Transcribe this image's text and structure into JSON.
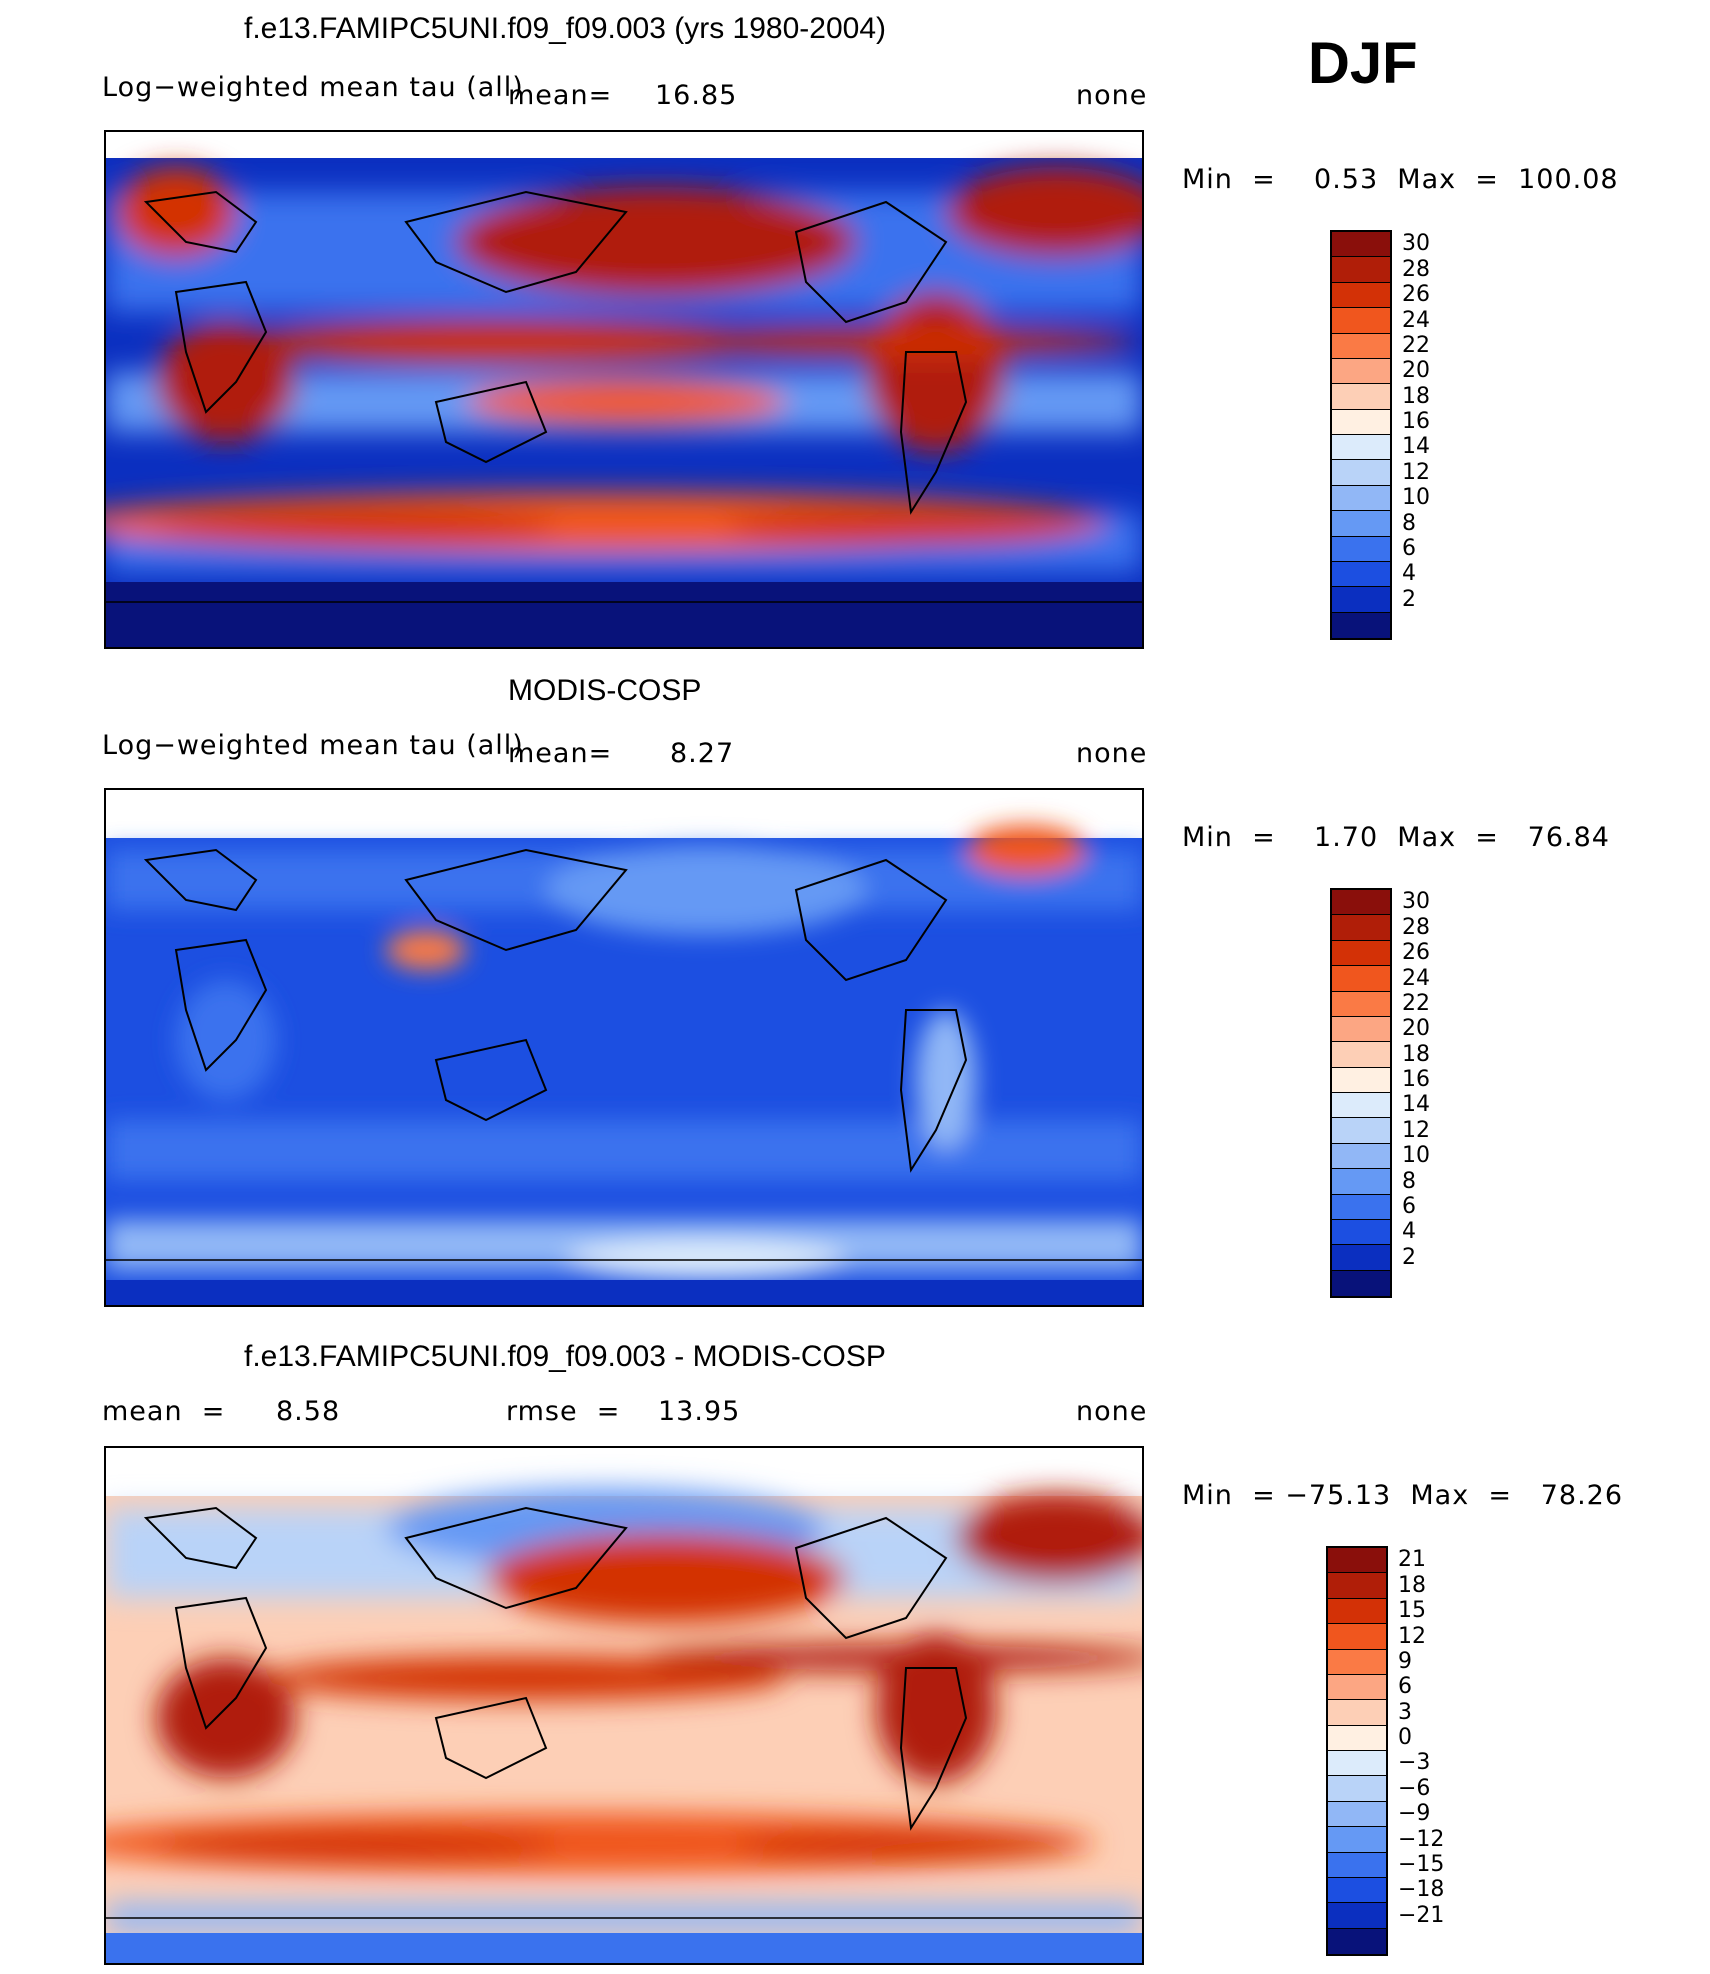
{
  "season": "DJF",
  "panels": [
    {
      "title": "f.e13.FAMIPC5UNI.f09_f09.003 (yrs 1980-2004)",
      "variable": "Log−weighted mean tau (all)",
      "mean_label": "mean=",
      "mean_value": "16.85",
      "units": "none",
      "minmax": "Min  =    0.53  Max  =  100.08",
      "cbar_labels": [
        "30",
        "28",
        "26",
        "24",
        "22",
        "20",
        "18",
        "16",
        "14",
        "12",
        "10",
        "8",
        "6",
        "4",
        "2"
      ],
      "cbar_colors": [
        "#8a0f0b",
        "#b01e08",
        "#d33106",
        "#f0561e",
        "#fa7a45",
        "#fca683",
        "#fdcfb6",
        "#fff0e2",
        "#dcebfb",
        "#b9d3f8",
        "#91b7f6",
        "#6599f4",
        "#3a72ee",
        "#1c4fe1",
        "#0b2fc0",
        "#08127a"
      ]
    },
    {
      "title": "MODIS-COSP",
      "variable": "Log−weighted mean tau (all)",
      "mean_label": "mean=",
      "mean_value": "8.27",
      "units": "none",
      "minmax": "Min  =    1.70  Max  =   76.84",
      "cbar_labels": [
        "30",
        "28",
        "26",
        "24",
        "22",
        "20",
        "18",
        "16",
        "14",
        "12",
        "10",
        "8",
        "6",
        "4",
        "2"
      ],
      "cbar_colors": [
        "#8a0f0b",
        "#b01e08",
        "#d33106",
        "#f0561e",
        "#fa7a45",
        "#fca683",
        "#fdcfb6",
        "#fff0e2",
        "#dcebfb",
        "#b9d3f8",
        "#91b7f6",
        "#6599f4",
        "#3a72ee",
        "#1c4fe1",
        "#0b2fc0",
        "#08127a"
      ]
    },
    {
      "title": "f.e13.FAMIPC5UNI.f09_f09.003 - MODIS-COSP",
      "mean_label": "mean  =",
      "mean_value": "8.58",
      "rmse_label": "rmse  =",
      "rmse_value": "13.95",
      "units": "none",
      "minmax": "Min  = −75.13  Max  =   78.26",
      "cbar_labels": [
        "21",
        "18",
        "15",
        "12",
        "9",
        "6",
        "3",
        "0",
        "−3",
        "−6",
        "−9",
        "−12",
        "−15",
        "−18",
        "−21"
      ],
      "cbar_colors": [
        "#8a0f0b",
        "#b01e08",
        "#d33106",
        "#f0561e",
        "#fa7a45",
        "#fca683",
        "#fdcfb6",
        "#fff0e2",
        "#dcebfb",
        "#b9d3f8",
        "#91b7f6",
        "#6599f4",
        "#3a72ee",
        "#1c4fe1",
        "#0b2fc0",
        "#08127a"
      ]
    }
  ]
}
